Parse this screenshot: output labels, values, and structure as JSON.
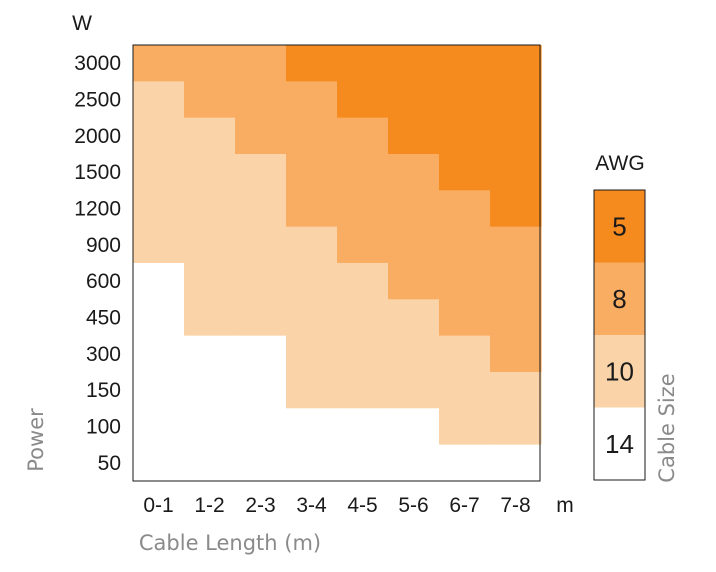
{
  "chart_data": {
    "type": "heatmap",
    "xlabel": "Cable Length (m)",
    "ylabel": "Power",
    "x_unit": "m",
    "y_unit": "W",
    "x_categories": [
      "0-1",
      "1-2",
      "2-3",
      "3-4",
      "4-5",
      "5-6",
      "6-7",
      "7-8"
    ],
    "y_categories": [
      "3000",
      "2500",
      "2000",
      "1500",
      "1200",
      "900",
      "600",
      "450",
      "300",
      "150",
      "100",
      "50"
    ],
    "legend": {
      "title": "AWG",
      "label": "Cable Size",
      "placement": "right",
      "levels": [
        {
          "value": "5",
          "color": "#f58a1f"
        },
        {
          "value": "8",
          "color": "#f8ad62"
        },
        {
          "value": "10",
          "color": "#fbd3a8"
        },
        {
          "value": "14",
          "color": "#ffffff"
        }
      ]
    },
    "awg_matrix": [
      [
        "8",
        "8",
        "8",
        "5",
        "5",
        "5",
        "5",
        "5"
      ],
      [
        "10",
        "8",
        "8",
        "8",
        "5",
        "5",
        "5",
        "5"
      ],
      [
        "10",
        "10",
        "8",
        "8",
        "8",
        "5",
        "5",
        "5"
      ],
      [
        "10",
        "10",
        "10",
        "8",
        "8",
        "8",
        "5",
        "5"
      ],
      [
        "10",
        "10",
        "10",
        "8",
        "8",
        "8",
        "8",
        "5"
      ],
      [
        "10",
        "10",
        "10",
        "10",
        "8",
        "8",
        "8",
        "8"
      ],
      [
        "14",
        "10",
        "10",
        "10",
        "10",
        "8",
        "8",
        "8"
      ],
      [
        "14",
        "10",
        "10",
        "10",
        "10",
        "10",
        "8",
        "8"
      ],
      [
        "14",
        "14",
        "14",
        "10",
        "10",
        "10",
        "10",
        "8"
      ],
      [
        "14",
        "14",
        "14",
        "10",
        "10",
        "10",
        "10",
        "10"
      ],
      [
        "14",
        "14",
        "14",
        "14",
        "14",
        "14",
        "10",
        "10"
      ],
      [
        "14",
        "14",
        "14",
        "14",
        "14",
        "14",
        "14",
        "14"
      ]
    ],
    "grid": false
  }
}
